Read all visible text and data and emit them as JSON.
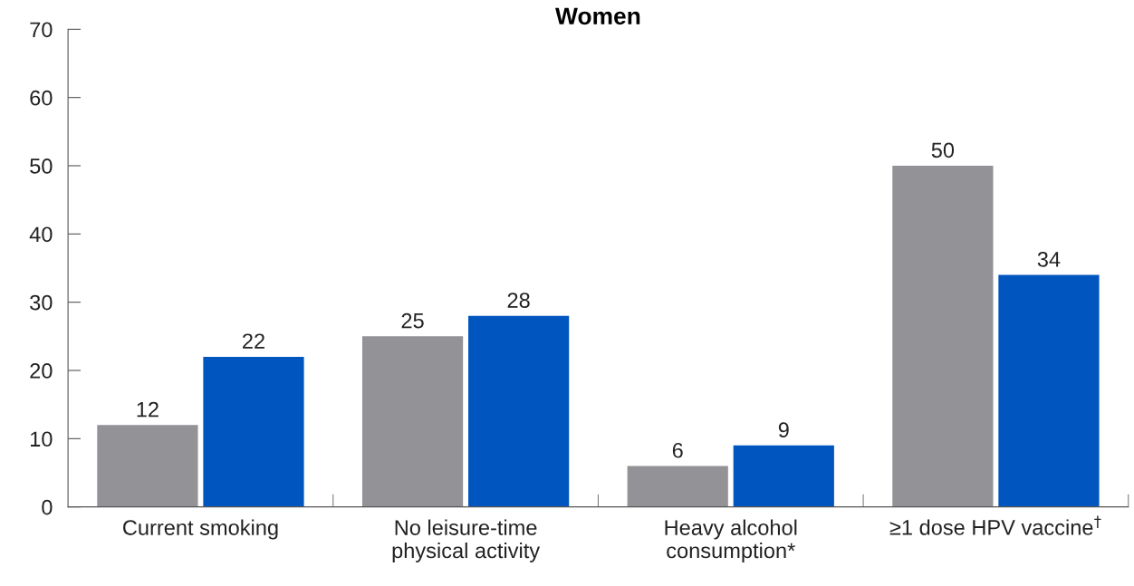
{
  "chart_data": {
    "type": "bar",
    "title": "Women",
    "categories": [
      "Current smoking",
      "No leisure-time\nphysical activity",
      "Heavy alcohol\nconsumption*",
      "≥1 dose HPV vaccine$^{†}$"
    ],
    "series": [
      {
        "color": "#929297",
        "values": [
          12,
          25,
          6,
          50
        ]
      },
      {
        "color": "#0055bf",
        "values": [
          22,
          28,
          9,
          34
        ]
      }
    ],
    "ylim": [
      0,
      70
    ],
    "yticks": [
      0,
      10,
      20,
      30,
      40,
      50,
      60,
      70
    ],
    "grid": false,
    "data_labels": true
  }
}
